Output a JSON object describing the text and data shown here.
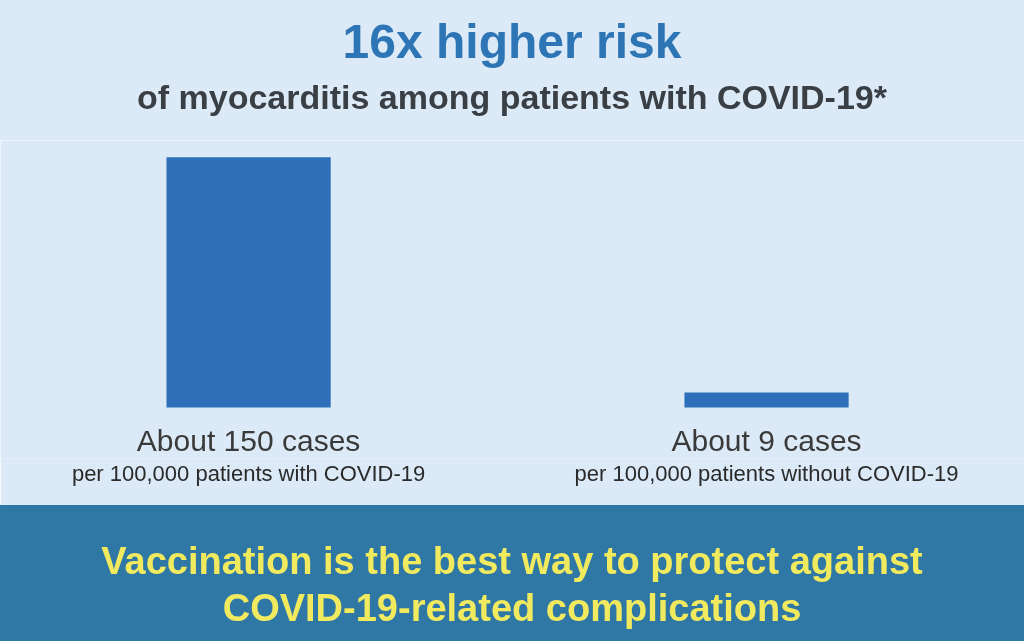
{
  "chart_data": {
    "type": "bar",
    "title": "16x higher risk",
    "subtitle": "of myocarditis among patients with COVID-19*",
    "categories": [
      "per 100,000 patients with COVID-19",
      "per 100,000 patients without COVID-19"
    ],
    "values": [
      150,
      9
    ],
    "color": "#2e6fba",
    "value_labels": [
      "About 150 cases",
      "About 9 cases"
    ],
    "tick_labels": "x",
    "annotations": [
      "Vaccination is the best way to protect against COVID-19-related complications"
    ]
  }
}
